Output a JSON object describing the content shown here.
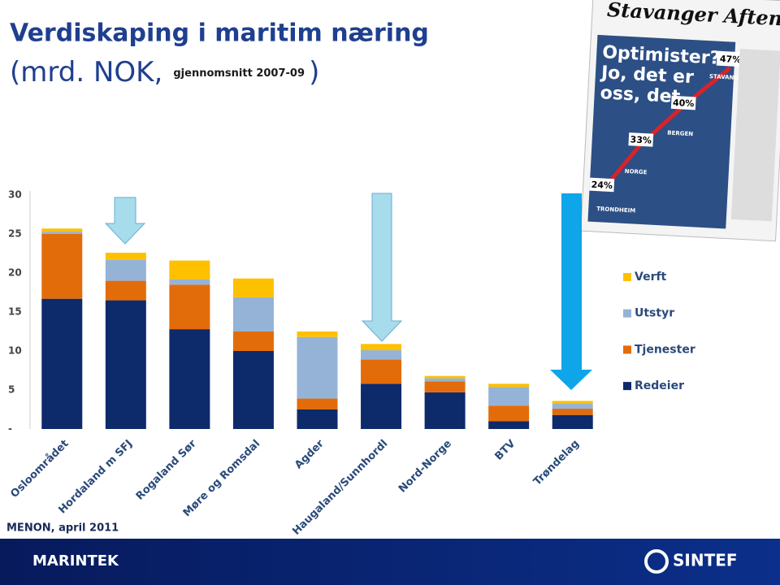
{
  "chart_data": {
    "type": "stacked_bar",
    "title": "Verdiskaping i maritim næring",
    "subtitle": [
      "(mrd. NOK,",
      "gjennomsnitt 2007-09",
      ")"
    ],
    "categories": [
      "Osloområdet",
      "Hordaland m SFJ",
      "Rogaland Sør",
      "Møre og Romsdal",
      "Agder",
      "Haugaland/Sunnhordl",
      "Nord-Norge",
      "BTV",
      "Trøndelag"
    ],
    "series": [
      {
        "name": "Redeier",
        "color": "#0d2a6b",
        "values": [
          16.7,
          16.5,
          12.8,
          10.0,
          2.5,
          5.8,
          4.7,
          1.0,
          1.8
        ]
      },
      {
        "name": "Tjenester",
        "color": "#e36c0a",
        "values": [
          8.3,
          2.5,
          5.7,
          2.5,
          1.4,
          3.1,
          1.4,
          2.0,
          0.8
        ]
      },
      {
        "name": "Utstyr",
        "color": "#95b3d7",
        "values": [
          0.3,
          2.7,
          0.7,
          4.4,
          7.9,
          1.2,
          0.4,
          2.4,
          0.7
        ]
      },
      {
        "name": "Verft",
        "color": "#ffc000",
        "values": [
          0.4,
          0.9,
          2.4,
          2.4,
          0.7,
          0.8,
          0.3,
          0.4,
          0.3
        ]
      }
    ],
    "ylim": [
      0,
      30
    ],
    "yticks": [
      {
        "value": 0,
        "label": "-"
      },
      5,
      10,
      15,
      20,
      25,
      30
    ],
    "grid": false,
    "legend": "right"
  },
  "source": "MENON, april 2011",
  "newspaper": {
    "masthead": "Stavanger Aftenblad",
    "headline": [
      "Optimister?",
      "Jo, det er",
      "oss, det"
    ],
    "badges": [
      "47%",
      "40%",
      "33%",
      "24%"
    ],
    "cities": [
      "STAVANGER",
      "BERGEN",
      "NORGE",
      "TRONDHEIM"
    ]
  },
  "footer": {
    "left": "MARINTEK",
    "right": "SINTEF"
  }
}
